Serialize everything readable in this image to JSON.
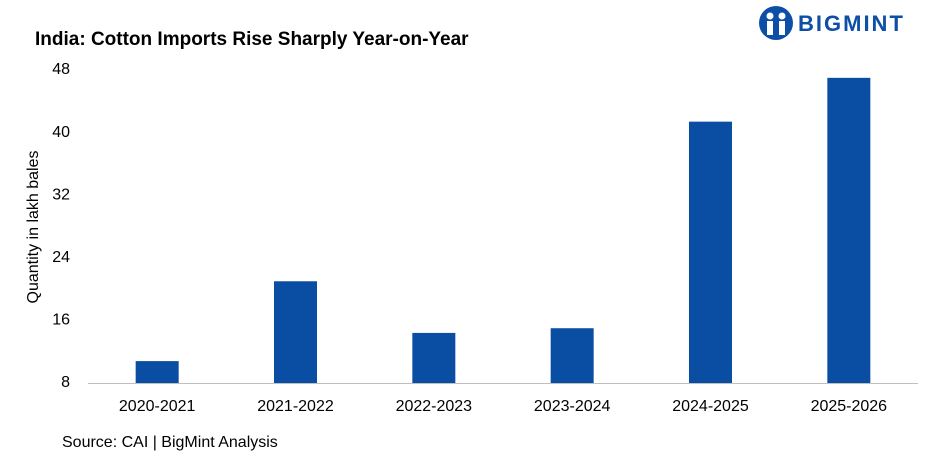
{
  "brand": "BIGMINT",
  "chart_data": {
    "type": "bar",
    "title": "India: Cotton Imports Rise Sharply Year-on-Year",
    "y_label": "Quantity in lakh bales",
    "categories": [
      "2020-2021",
      "2021-2022",
      "2022-2023",
      "2023-2024",
      "2024-2025",
      "2025-2026"
    ],
    "values": [
      10.8,
      21.0,
      14.4,
      15.0,
      41.4,
      47.0
    ],
    "color": "#0a4ea3",
    "ylim": [
      8,
      48
    ],
    "yticks": [
      8,
      16,
      24,
      32,
      40,
      48
    ],
    "grid": false,
    "source": "Source: CAI | BigMint Analysis"
  }
}
